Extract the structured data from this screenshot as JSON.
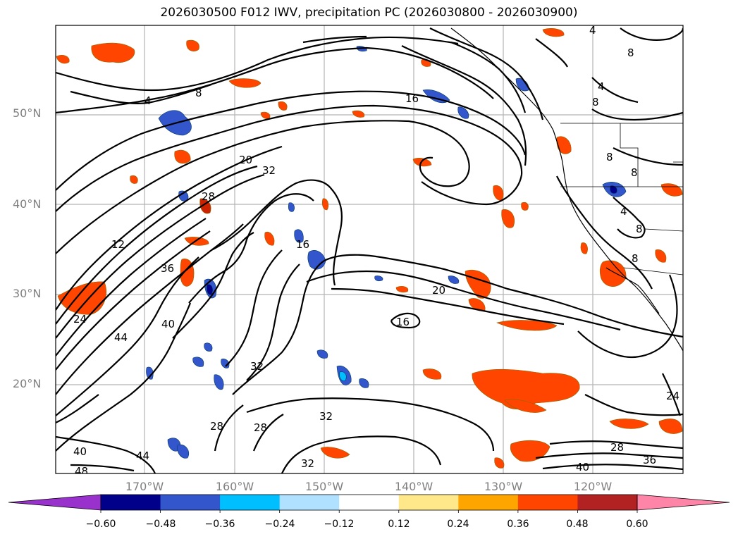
{
  "title": "2026030500 F012 IWV, precipitation PC (2026030800 - 2026030900)",
  "lat_labels": [
    "50°N",
    "40°N",
    "30°N",
    "20°N"
  ],
  "lon_labels": [
    "170°W",
    "160°W",
    "150°W",
    "140°W",
    "130°W",
    "120°W"
  ],
  "colorbar": {
    "ticks": [
      "−0.60",
      "−0.48",
      "−0.36",
      "−0.24",
      "−0.12",
      "0.12",
      "0.24",
      "0.36",
      "0.48",
      "0.60"
    ],
    "colors": [
      "#9932cc",
      "#00008b",
      "#3356cc",
      "#00bfff",
      "#b0e2ff",
      "#ffffff",
      "#ffe88a",
      "#ffa500",
      "#ff4500",
      "#b22222",
      "#ff85a8"
    ]
  },
  "contour_labels": [
    "4",
    "8",
    "16",
    "20",
    "32",
    "28",
    "12",
    "36",
    "24",
    "44",
    "40",
    "16",
    "20",
    "16",
    "32",
    "28",
    "32",
    "28",
    "40",
    "44",
    "48",
    "32",
    "28",
    "40",
    "36",
    "24",
    "8",
    "4",
    "8",
    "8",
    "8",
    "8",
    "4",
    "8",
    "4"
  ]
}
